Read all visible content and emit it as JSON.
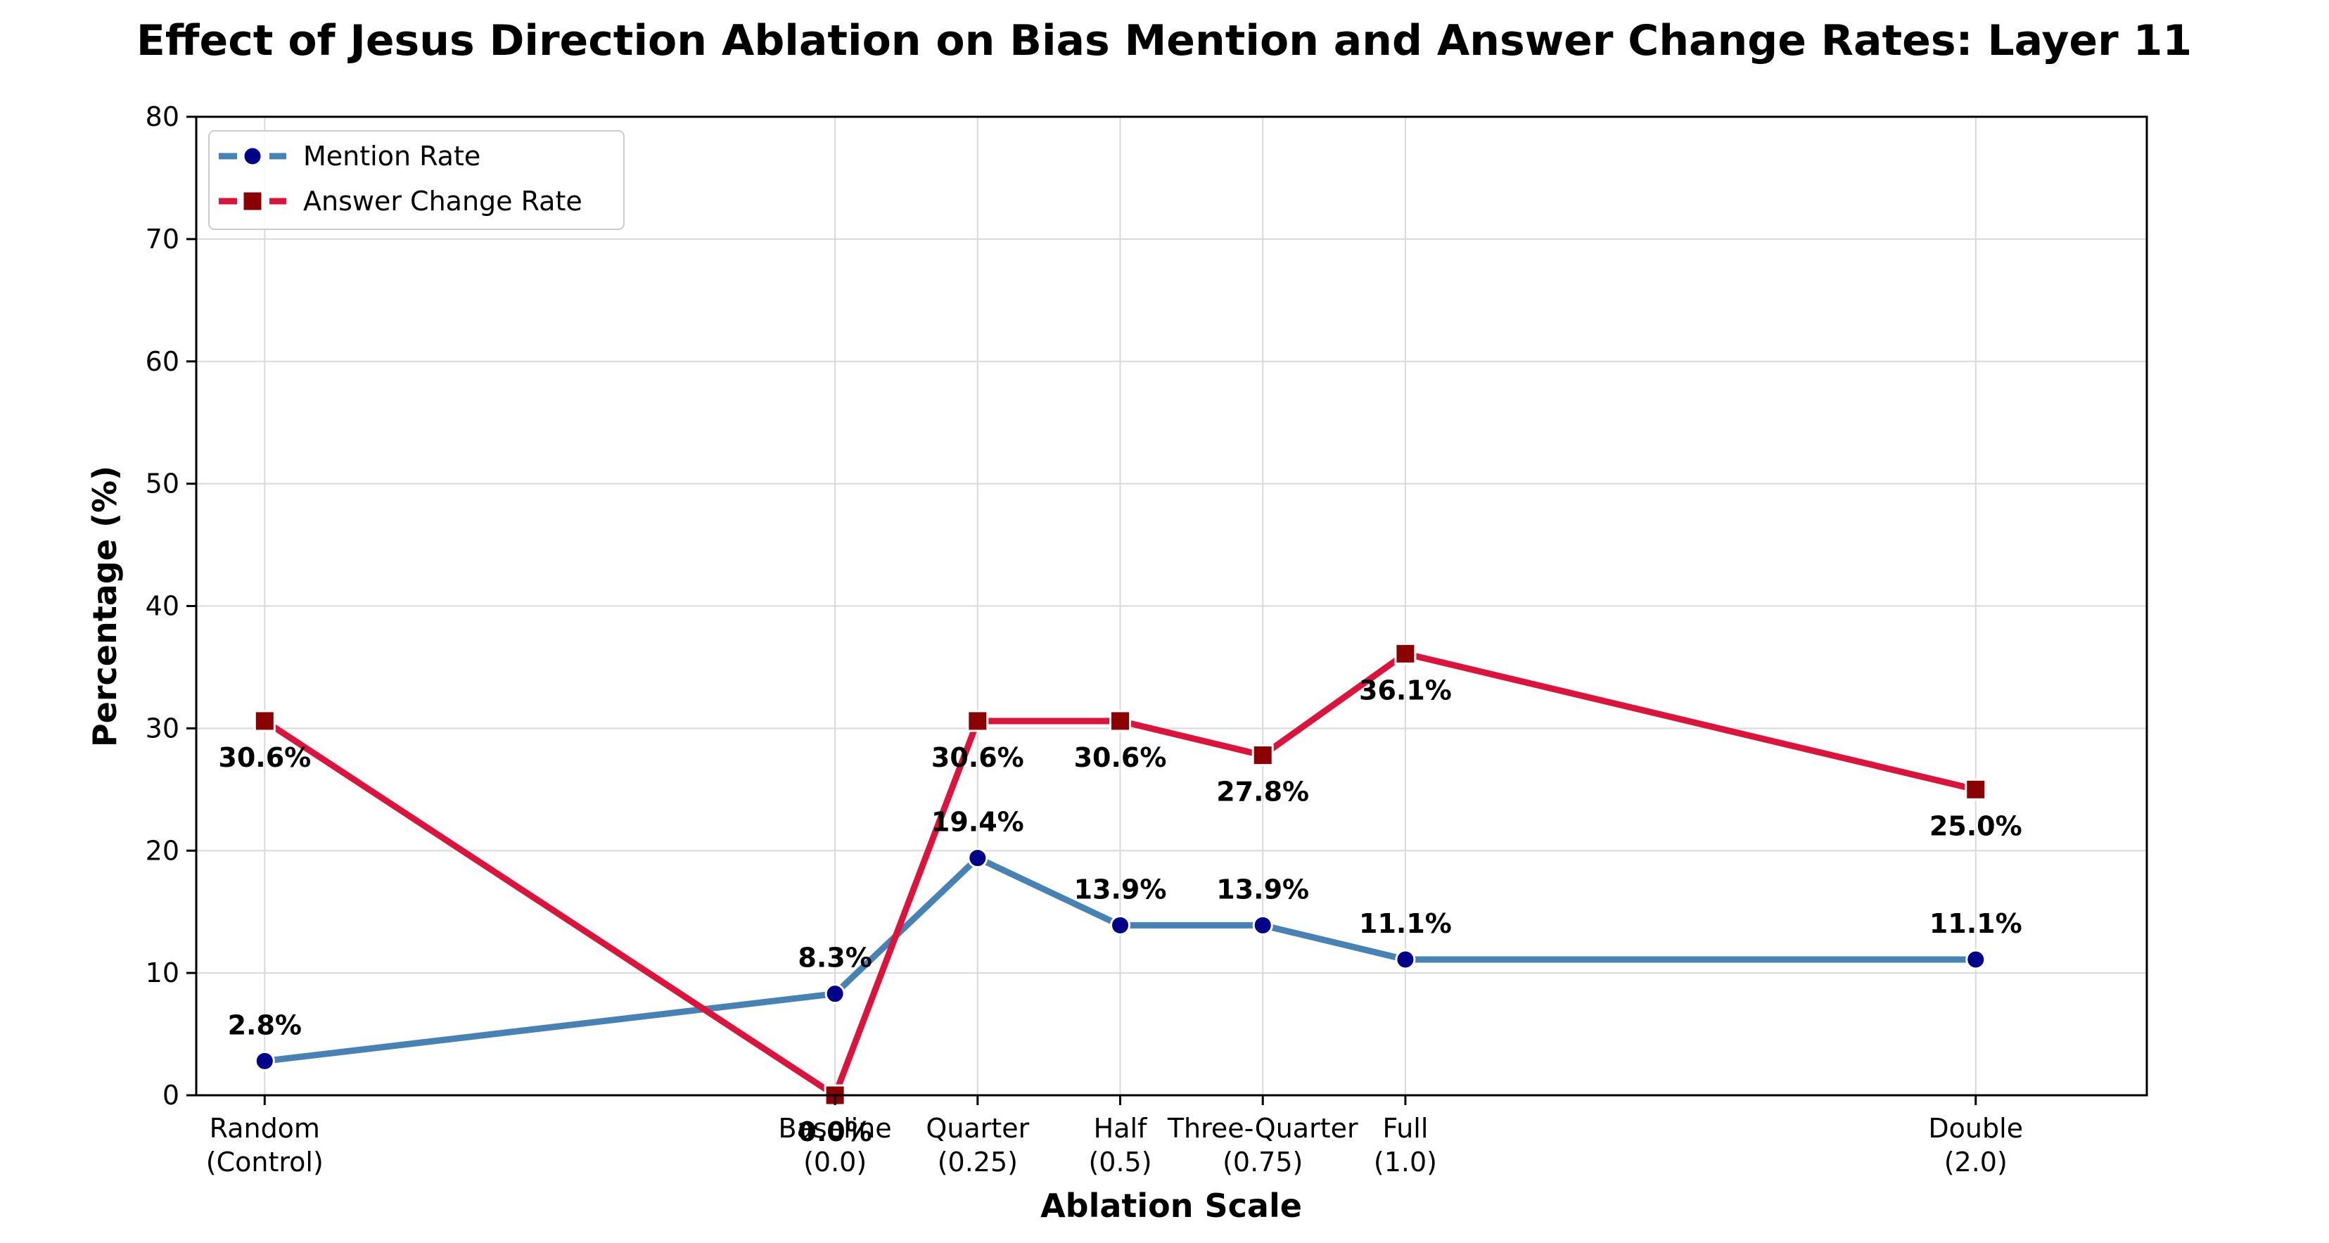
{
  "chart_data": {
    "type": "line",
    "title": "Effect of Jesus Direction Ablation on Bias Mention and Answer Change Rates: Layer 11",
    "xlabel": "Ablation Scale",
    "ylabel": "Percentage (%)",
    "ylim": [
      0,
      80
    ],
    "yticks": [
      0,
      10,
      20,
      30,
      40,
      50,
      60,
      70,
      80
    ],
    "grid": true,
    "legend_position": "top-left",
    "categories": [
      {
        "line1": "Random",
        "line2": "(Control)",
        "x": -1.0
      },
      {
        "line1": "Baseline",
        "line2": "(0.0)",
        "x": 0.0
      },
      {
        "line1": "Quarter",
        "line2": "(0.25)",
        "x": 0.25
      },
      {
        "line1": "Half",
        "line2": "(0.5)",
        "x": 0.5
      },
      {
        "line1": "Three-Quarter",
        "line2": "(0.75)",
        "x": 0.75
      },
      {
        "line1": "Full",
        "line2": "(1.0)",
        "x": 1.0
      },
      {
        "line1": "Double",
        "line2": "(2.0)",
        "x": 2.0
      }
    ],
    "series": [
      {
        "name": "Mention Rate",
        "line_color": "#4682B4",
        "marker_color": "#00008B",
        "marker": "circle",
        "values": [
          2.8,
          8.3,
          19.4,
          13.9,
          13.9,
          11.1,
          11.1
        ],
        "labels": [
          "2.8%",
          "8.3%",
          "19.4%",
          "13.9%",
          "13.9%",
          "11.1%",
          "11.1%"
        ],
        "label_placement": "above"
      },
      {
        "name": "Answer Change Rate",
        "line_color": "#DC143C",
        "marker_color": "#8B0000",
        "marker": "square",
        "values": [
          30.6,
          0.0,
          30.6,
          30.6,
          27.8,
          36.1,
          25.0
        ],
        "labels": [
          "30.6%",
          "0.0%",
          "30.6%",
          "30.6%",
          "27.8%",
          "36.1%",
          "25.0%"
        ],
        "label_placement": "below"
      }
    ]
  }
}
